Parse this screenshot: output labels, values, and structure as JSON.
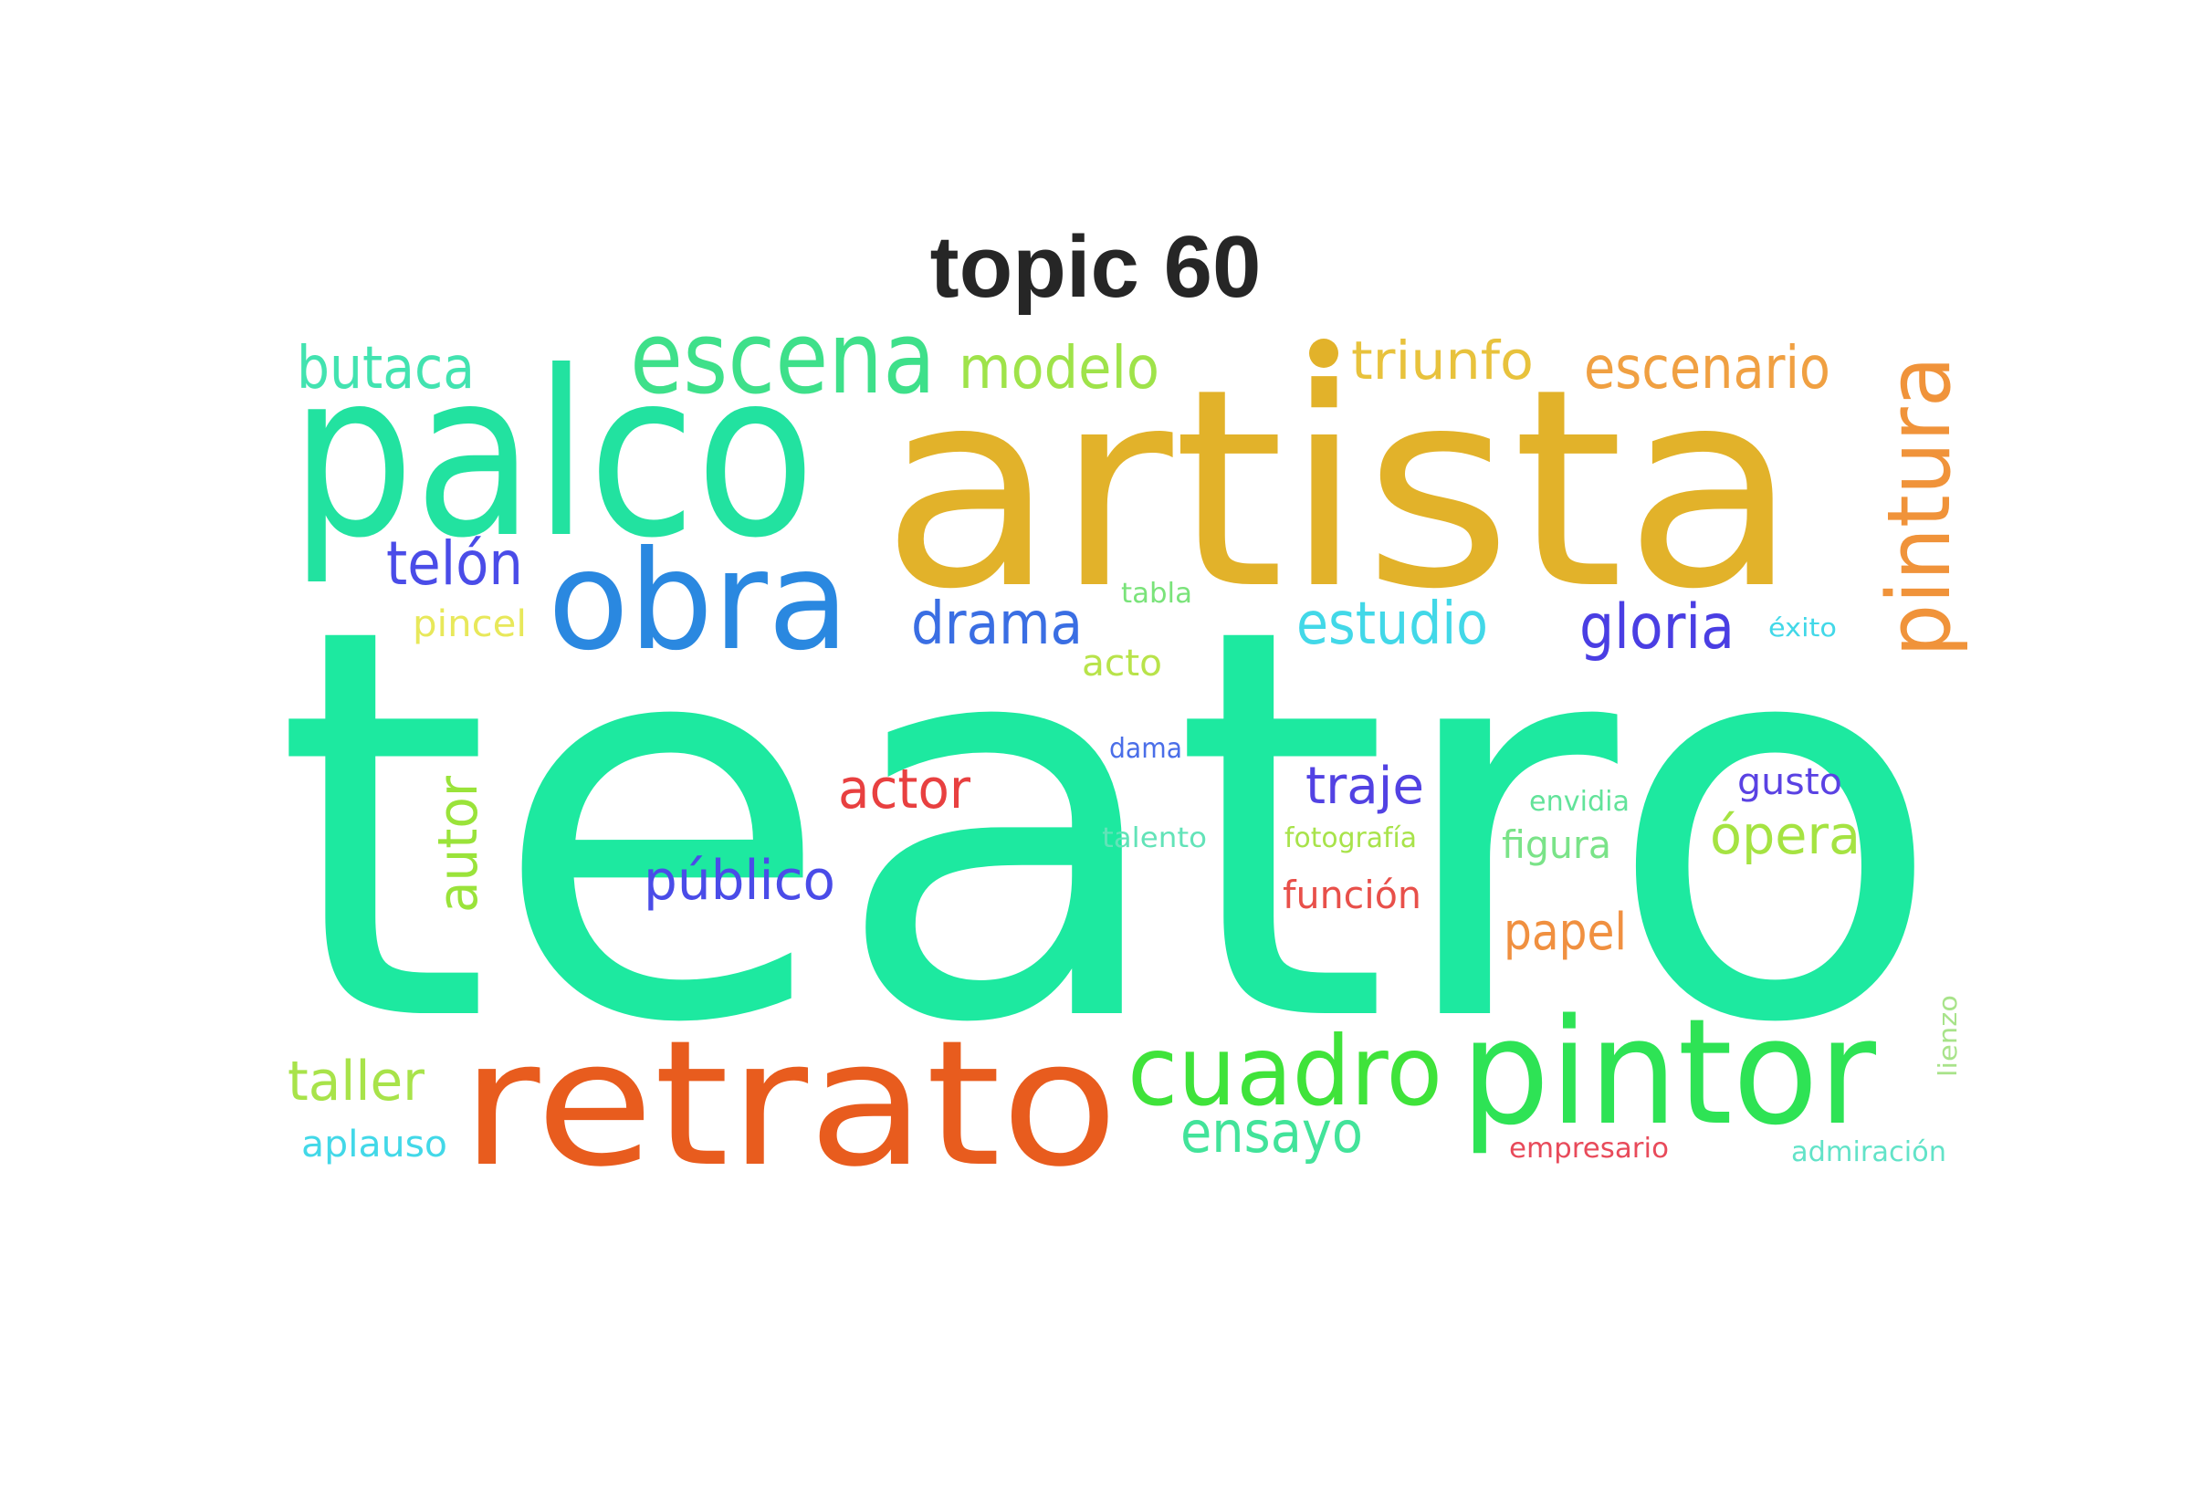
{
  "title": "topic 60",
  "words": [
    {
      "text": "teatro",
      "color": "#1de9a0",
      "weight": 100
    },
    {
      "text": "artista",
      "color": "#e2b22a",
      "weight": 52
    },
    {
      "text": "palco",
      "color": "#22e2a0",
      "weight": 38
    },
    {
      "text": "retrato",
      "color": "#e85c1e",
      "weight": 36
    },
    {
      "text": "pintor",
      "color": "#2ee355",
      "weight": 30
    },
    {
      "text": "obra",
      "color": "#2a88e0",
      "weight": 26
    },
    {
      "text": "escena",
      "color": "#3ee08a",
      "weight": 20
    },
    {
      "text": "cuadro",
      "color": "#3fe33a",
      "weight": 19
    },
    {
      "text": "pintura",
      "color": "#f0933a",
      "weight": 18
    },
    {
      "text": "modelo",
      "color": "#9fe34a",
      "weight": 11
    },
    {
      "text": "escenario",
      "color": "#f0a042",
      "weight": 11
    },
    {
      "text": "triunfo",
      "color": "#e8c23c",
      "weight": 10
    },
    {
      "text": "butaca",
      "color": "#42e3b0",
      "weight": 11
    },
    {
      "text": "telón",
      "color": "#4a4ce8",
      "weight": 11
    },
    {
      "text": "drama",
      "color": "#3a6ee3",
      "weight": 10
    },
    {
      "text": "estudio",
      "color": "#42d8e8",
      "weight": 11
    },
    {
      "text": "gloria",
      "color": "#4a3ee3",
      "weight": 11
    },
    {
      "text": "ensayo",
      "color": "#42e39a",
      "weight": 11
    },
    {
      "text": "autor",
      "color": "#9ae33a",
      "weight": 10
    },
    {
      "text": "taller",
      "color": "#a8e34a",
      "weight": 10
    },
    {
      "text": "actor",
      "color": "#e84040",
      "weight": 10
    },
    {
      "text": "público",
      "color": "#4a4ce8",
      "weight": 10
    },
    {
      "text": "traje",
      "color": "#5242e3",
      "weight": 10
    },
    {
      "text": "ópera",
      "color": "#a5e342",
      "weight": 10
    },
    {
      "text": "papel",
      "color": "#f09040",
      "weight": 9
    },
    {
      "text": "figura",
      "color": "#7ae388",
      "weight": 8
    },
    {
      "text": "función",
      "color": "#e8504a",
      "weight": 7
    },
    {
      "text": "gusto",
      "color": "#5a42e3",
      "weight": 7
    },
    {
      "text": "pincel",
      "color": "#e8e85a",
      "weight": 7
    },
    {
      "text": "aplauso",
      "color": "#42d8e8",
      "weight": 7
    },
    {
      "text": "acto",
      "color": "#b8e34a",
      "weight": 6
    },
    {
      "text": "tabla",
      "color": "#7ae37a",
      "weight": 5
    },
    {
      "text": "dama",
      "color": "#4a6ee8",
      "weight": 5
    },
    {
      "text": "talento",
      "color": "#62e3b8",
      "weight": 5
    },
    {
      "text": "fotografía",
      "color": "#a8e34a",
      "weight": 5
    },
    {
      "text": "envidia",
      "color": "#62e39a",
      "weight": 5
    },
    {
      "text": "éxito",
      "color": "#42d8e8",
      "weight": 4
    },
    {
      "text": "empresario",
      "color": "#e84a5a",
      "weight": 5
    },
    {
      "text": "admiración",
      "color": "#62e3c8",
      "weight": 5
    },
    {
      "text": "lienzo",
      "color": "#a8e38a",
      "weight": 4
    },
    {
      "text": "•",
      "color": "#e2b22a",
      "weight": 6
    }
  ]
}
